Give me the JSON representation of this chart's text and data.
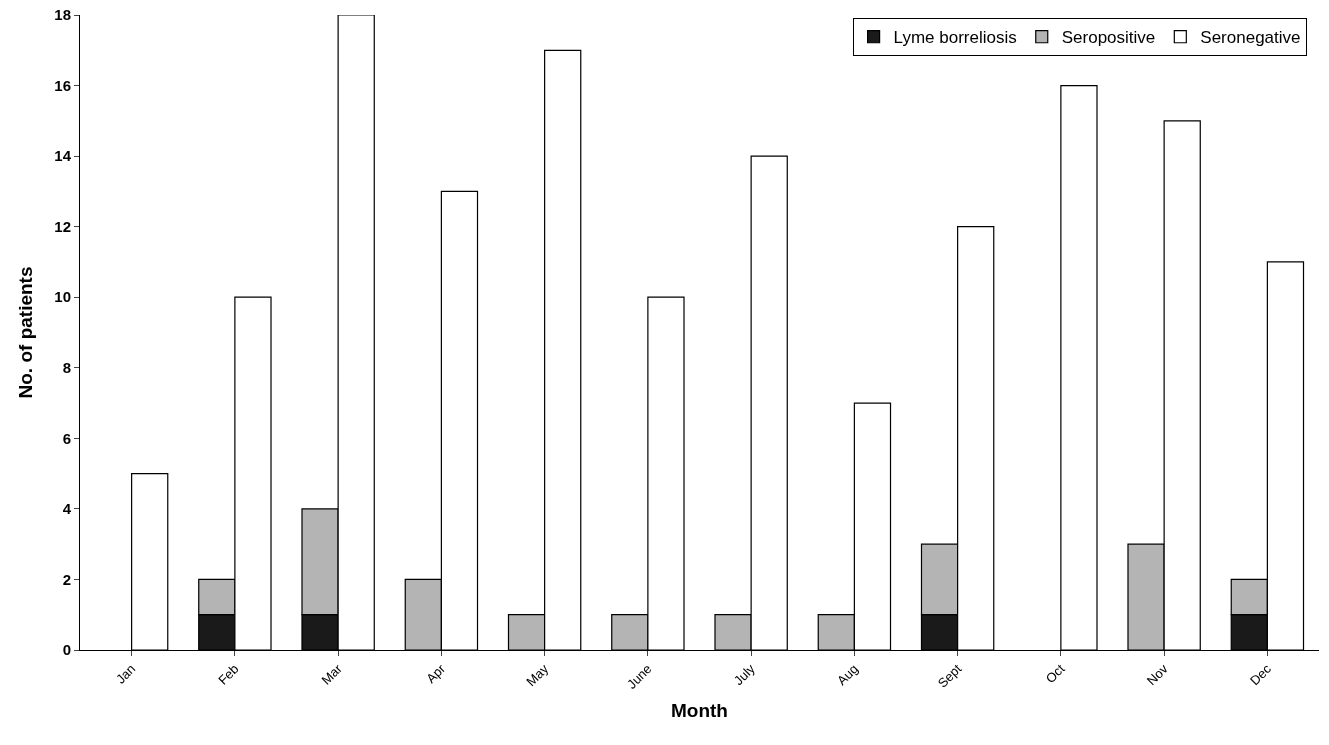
{
  "chart_data": {
    "type": "bar",
    "xlabel": "Month",
    "ylabel": "No. of patients",
    "categories": [
      "Jan",
      "Feb",
      "Mar",
      "Apr",
      "May",
      "June",
      "July",
      "Aug",
      "Sept",
      "Oct",
      "Nov",
      "Dec"
    ],
    "series": [
      {
        "name": "Lyme borreliosis",
        "color": "#1a1a1a",
        "values": [
          null,
          1,
          1,
          null,
          null,
          null,
          null,
          null,
          1,
          null,
          null,
          1
        ]
      },
      {
        "name": "Seropositive",
        "color": "#b4b4b4",
        "base": [
          null,
          1,
          1,
          0,
          0,
          0,
          0,
          0,
          1,
          null,
          0,
          1
        ],
        "values": [
          null,
          1,
          3,
          2,
          1,
          1,
          1,
          1,
          2,
          null,
          3,
          1
        ]
      },
      {
        "name": "Seronegative",
        "color": "#ffffff",
        "values": [
          5,
          10,
          18,
          13,
          17,
          10,
          14,
          7,
          12,
          16,
          15,
          11
        ]
      }
    ],
    "ylim": [
      0,
      18
    ],
    "yticks": [
      0,
      2,
      4,
      6,
      8,
      10,
      12,
      14,
      16,
      18
    ],
    "grid": false,
    "legend": "top right"
  }
}
